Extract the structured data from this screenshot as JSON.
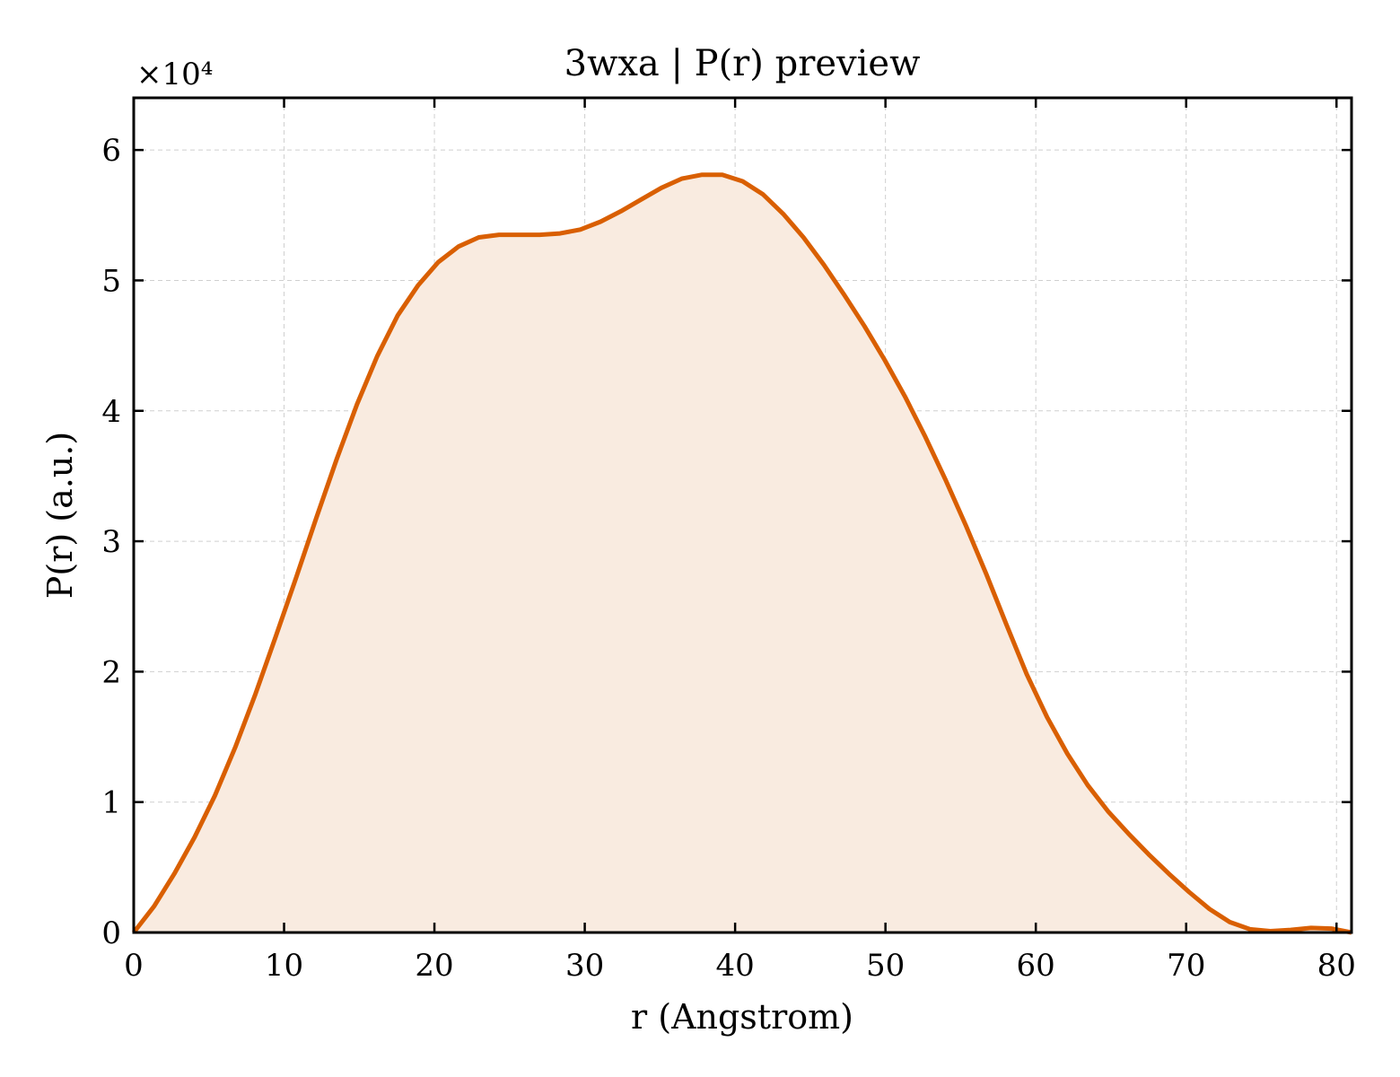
{
  "chart_data": {
    "type": "area",
    "title": "3wxa | P(r) preview",
    "xlabel": "r (Angstrom)",
    "ylabel": "P(r) (a.u.)",
    "y_offset_label": "×10⁴",
    "xlim": [
      0,
      81
    ],
    "ylim": [
      0,
      64000
    ],
    "x_ticks": [
      0,
      10,
      20,
      30,
      40,
      50,
      60,
      70,
      80
    ],
    "x_tick_labels": [
      "0",
      "10",
      "20",
      "30",
      "40",
      "50",
      "60",
      "70",
      "80"
    ],
    "y_ticks": [
      0,
      10000,
      20000,
      30000,
      40000,
      50000,
      60000
    ],
    "y_tick_labels": [
      "0",
      "1",
      "2",
      "3",
      "4",
      "5",
      "6"
    ],
    "grid": true,
    "line_color": "#d95f02",
    "fill_color": "#f9ebe0",
    "series": [
      {
        "x": [
          0,
          1.35,
          2.7,
          4.05,
          5.4,
          6.75,
          8.1,
          9.45,
          10.8,
          12.15,
          13.5,
          14.85,
          16.2,
          17.55,
          18.9,
          20.25,
          21.6,
          22.95,
          24.3,
          25.65,
          27.0,
          28.35,
          29.7,
          31.05,
          32.4,
          33.75,
          35.1,
          36.45,
          37.8,
          39.15,
          40.5,
          41.85,
          43.2,
          44.55,
          45.9,
          47.25,
          48.6,
          49.95,
          51.3,
          52.65,
          54.0,
          55.35,
          56.7,
          58.05,
          59.4,
          60.75,
          62.1,
          63.45,
          64.8,
          66.15,
          67.5,
          68.85,
          70.2,
          71.55,
          72.9,
          74.25,
          75.6,
          76.95,
          78.3,
          79.65,
          81.0
        ],
        "y": [
          0,
          2000,
          4500,
          7300,
          10500,
          14200,
          18300,
          22700,
          27200,
          31800,
          36300,
          40500,
          44200,
          47300,
          49600,
          51400,
          52600,
          53300,
          53500,
          53500,
          53500,
          53600,
          53900,
          54500,
          55300,
          56200,
          57100,
          57800,
          58100,
          58100,
          57600,
          56600,
          55100,
          53300,
          51200,
          48900,
          46500,
          43900,
          41100,
          38000,
          34700,
          31200,
          27500,
          23600,
          19800,
          16500,
          13700,
          11300,
          9300,
          7600,
          6000,
          4500,
          3100,
          1800,
          800,
          250,
          100,
          200,
          350,
          300,
          0
        ]
      }
    ]
  }
}
